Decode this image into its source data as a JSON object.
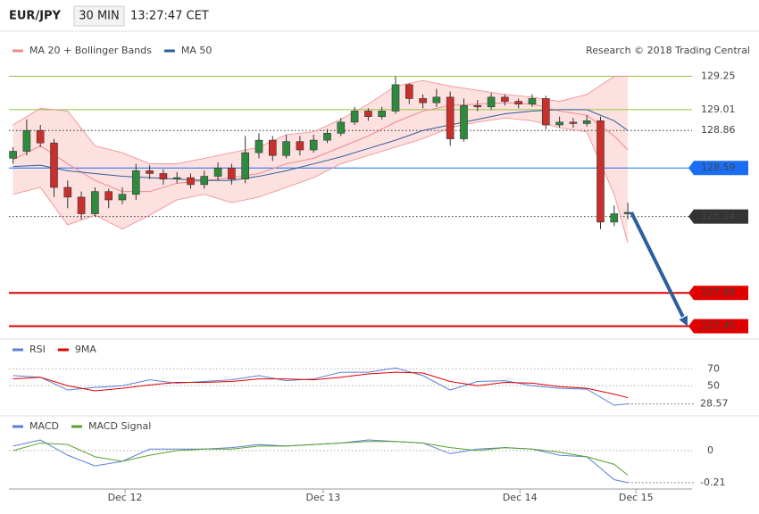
{
  "header": {
    "symbol": "EUR/JPY",
    "interval": "30 MIN",
    "time": "13:27:47 CET"
  },
  "chart_data": [
    {
      "type": "candlestick",
      "credit": "Research © 2018 Trading Central",
      "xlim": [
        -0.3,
        49.7
      ],
      "ylim": [
        127.37,
        129.35
      ],
      "up_color": "#2e8b3e",
      "down_color": "#c9302c",
      "open": [
        128.66,
        128.71,
        128.86,
        128.77,
        128.45,
        128.38,
        128.26,
        128.42,
        128.36,
        128.4,
        128.57,
        128.55,
        128.51,
        128.52,
        128.47,
        128.53,
        128.59,
        128.51,
        128.7,
        128.79,
        128.68,
        128.78,
        128.72,
        128.79,
        128.84,
        128.92,
        129.0,
        128.96,
        129.0,
        129.19,
        129.09,
        129.06,
        129.1,
        128.8,
        129.04,
        129.03,
        129.1,
        129.07,
        129.05,
        129.09,
        128.9,
        128.92,
        128.91,
        128.93,
        128.2,
        128.26
      ],
      "high": [
        128.74,
        128.94,
        128.9,
        128.8,
        128.5,
        128.42,
        128.45,
        128.44,
        128.45,
        128.62,
        128.61,
        128.58,
        128.56,
        128.55,
        128.57,
        128.63,
        128.62,
        128.82,
        128.84,
        128.82,
        128.83,
        128.82,
        128.83,
        128.87,
        128.95,
        129.03,
        129.02,
        129.03,
        129.25,
        129.2,
        129.12,
        129.16,
        129.14,
        129.09,
        129.08,
        129.13,
        129.12,
        129.09,
        129.12,
        129.11,
        128.96,
        128.95,
        128.97,
        128.96,
        128.32,
        128.34
      ],
      "low": [
        128.62,
        128.68,
        128.74,
        128.38,
        128.3,
        128.22,
        128.24,
        128.3,
        128.33,
        128.36,
        128.51,
        128.47,
        128.48,
        128.44,
        128.44,
        128.5,
        128.47,
        128.48,
        128.66,
        128.64,
        128.66,
        128.68,
        128.7,
        128.77,
        128.82,
        128.9,
        128.93,
        128.94,
        128.98,
        129.05,
        129.02,
        129.03,
        128.75,
        128.78,
        129.0,
        129.01,
        129.04,
        129.02,
        129.03,
        128.87,
        128.88,
        128.88,
        128.89,
        128.15,
        128.17,
        128.22
      ],
      "close": [
        128.71,
        128.86,
        128.77,
        128.45,
        128.38,
        128.26,
        128.42,
        128.36,
        128.4,
        128.57,
        128.55,
        128.51,
        128.52,
        128.47,
        128.53,
        128.59,
        128.51,
        128.7,
        128.79,
        128.68,
        128.78,
        128.72,
        128.79,
        128.84,
        128.92,
        129.0,
        128.96,
        129.0,
        129.19,
        129.09,
        129.06,
        129.1,
        128.8,
        129.04,
        129.03,
        129.1,
        129.07,
        129.05,
        129.09,
        128.9,
        128.92,
        128.91,
        128.93,
        128.2,
        128.26,
        128.27
      ],
      "series": [
        {
          "name": "MA 20 + Bollinger Bands",
          "color": "#f08a8a",
          "band_color": "#fde0e0",
          "x": [
            0,
            2,
            4,
            6,
            8,
            10,
            12,
            14,
            16,
            18,
            20,
            22,
            24,
            26,
            28,
            30,
            32,
            34,
            36,
            38,
            40,
            42,
            44,
            45
          ],
          "values": [
            128.65,
            128.75,
            128.62,
            128.5,
            128.42,
            128.42,
            128.48,
            128.5,
            128.52,
            128.55,
            128.62,
            128.66,
            128.74,
            128.82,
            128.92,
            129.0,
            129.04,
            129.05,
            129.06,
            129.05,
            129.0,
            128.97,
            128.82,
            128.72
          ],
          "upper": [
            128.9,
            129.02,
            129.0,
            128.75,
            128.7,
            128.62,
            128.62,
            128.66,
            128.7,
            128.74,
            128.83,
            128.85,
            128.94,
            129.05,
            129.18,
            129.22,
            129.18,
            129.15,
            129.12,
            129.1,
            129.07,
            129.12,
            129.25,
            129.25
          ],
          "lower": [
            128.4,
            128.45,
            128.18,
            128.25,
            128.15,
            128.25,
            128.36,
            128.4,
            128.34,
            128.38,
            128.45,
            128.52,
            128.62,
            128.68,
            128.74,
            128.8,
            128.88,
            128.92,
            128.95,
            128.93,
            128.88,
            128.85,
            128.4,
            128.05
          ]
        },
        {
          "name": "MA 50",
          "color": "#2d5f9a",
          "x": [
            0,
            2,
            4,
            6,
            8,
            10,
            12,
            14,
            16,
            18,
            20,
            22,
            24,
            26,
            28,
            30,
            32,
            34,
            36,
            38,
            40,
            42,
            44,
            45
          ],
          "values": [
            128.6,
            128.61,
            128.57,
            128.55,
            128.53,
            128.52,
            128.51,
            128.5,
            128.5,
            128.53,
            128.57,
            128.62,
            128.67,
            128.73,
            128.79,
            128.86,
            128.9,
            128.94,
            128.98,
            129.0,
            129.01,
            129.01,
            128.93,
            128.86
          ]
        }
      ],
      "levels": [
        {
          "value": 129.25,
          "color": "#8cc63f",
          "style": "solid"
        },
        {
          "value": 129.01,
          "color": "#8cc63f",
          "style": "solid"
        },
        {
          "value": 128.86,
          "color": "#333333",
          "style": "dotted"
        },
        {
          "value": 128.59,
          "color": "#1a6ef5",
          "style": "solid",
          "box": "#1a6ef5"
        },
        {
          "value": 128.24,
          "color": "#333333",
          "style": "dotted",
          "box": "#333333"
        },
        {
          "value": 127.69,
          "color": "#e00000",
          "style": "solid",
          "box": "#e00000"
        },
        {
          "value": 127.45,
          "color": "#e00000",
          "style": "solid",
          "box": "#e00000"
        }
      ],
      "forecast_color": "#2b5fa0"
    },
    {
      "type": "line",
      "xlim": [
        -0.3,
        49.7
      ],
      "ylim": [
        18.7,
        84
      ],
      "yticks": [
        70,
        50
      ],
      "series": [
        {
          "name": "RSI",
          "color": "#5b7fd6",
          "x": [
            0,
            2,
            4,
            6,
            8,
            10,
            12,
            14,
            16,
            18,
            20,
            22,
            24,
            26,
            28,
            30,
            32,
            34,
            36,
            38,
            40,
            42,
            44,
            45
          ],
          "values": [
            62,
            60,
            45,
            48,
            50,
            57,
            53,
            55,
            57,
            62,
            56,
            58,
            66,
            66,
            71,
            62,
            45,
            55,
            56,
            50,
            47,
            46,
            27,
            28.57
          ]
        },
        {
          "name": "9MA",
          "color": "#e00000",
          "x": [
            0,
            2,
            4,
            6,
            8,
            10,
            12,
            14,
            16,
            18,
            20,
            22,
            24,
            26,
            28,
            30,
            32,
            34,
            36,
            38,
            40,
            42,
            44,
            45
          ],
          "values": [
            58,
            60,
            50,
            44,
            47,
            51,
            54,
            54,
            55,
            58,
            58,
            57,
            60,
            64,
            66,
            65,
            55,
            50,
            54,
            53,
            49,
            47,
            40,
            36
          ]
        }
      ]
    },
    {
      "type": "line",
      "xlim": [
        -0.3,
        49.7
      ],
      "ylim": [
        -0.234,
        0.117
      ],
      "yticks": [
        0
      ],
      "xticks": [
        {
          "value": 8.2,
          "label": "Dec 12"
        },
        {
          "value": 22.7,
          "label": "Dec 13"
        },
        {
          "value": 37.1,
          "label": "Dec 14"
        },
        {
          "value": 45.6,
          "label": "Dec 15"
        }
      ],
      "series": [
        {
          "name": "MACD",
          "color": "#5b7fd6",
          "x": [
            0,
            2,
            4,
            6,
            8,
            10,
            12,
            14,
            16,
            18,
            20,
            22,
            24,
            26,
            28,
            30,
            32,
            34,
            36,
            38,
            40,
            42,
            44,
            45
          ],
          "values": [
            0.03,
            0.07,
            -0.03,
            -0.1,
            -0.07,
            0.01,
            0.01,
            0.01,
            0.02,
            0.04,
            0.03,
            0.04,
            0.05,
            0.07,
            0.06,
            0.05,
            -0.02,
            0.01,
            0.02,
            0.01,
            -0.03,
            -0.04,
            -0.19,
            -0.21
          ]
        },
        {
          "name": "MACD Signal",
          "color": "#5aa02c",
          "x": [
            0,
            2,
            4,
            6,
            8,
            10,
            12,
            14,
            16,
            18,
            20,
            22,
            24,
            26,
            28,
            30,
            32,
            34,
            36,
            38,
            40,
            42,
            44,
            45
          ],
          "values": [
            0.0,
            0.05,
            0.04,
            -0.04,
            -0.07,
            -0.03,
            0.0,
            0.01,
            0.01,
            0.03,
            0.03,
            0.04,
            0.05,
            0.06,
            0.06,
            0.05,
            0.02,
            0.0,
            0.02,
            0.01,
            -0.01,
            -0.04,
            -0.09,
            -0.16
          ]
        }
      ]
    }
  ]
}
